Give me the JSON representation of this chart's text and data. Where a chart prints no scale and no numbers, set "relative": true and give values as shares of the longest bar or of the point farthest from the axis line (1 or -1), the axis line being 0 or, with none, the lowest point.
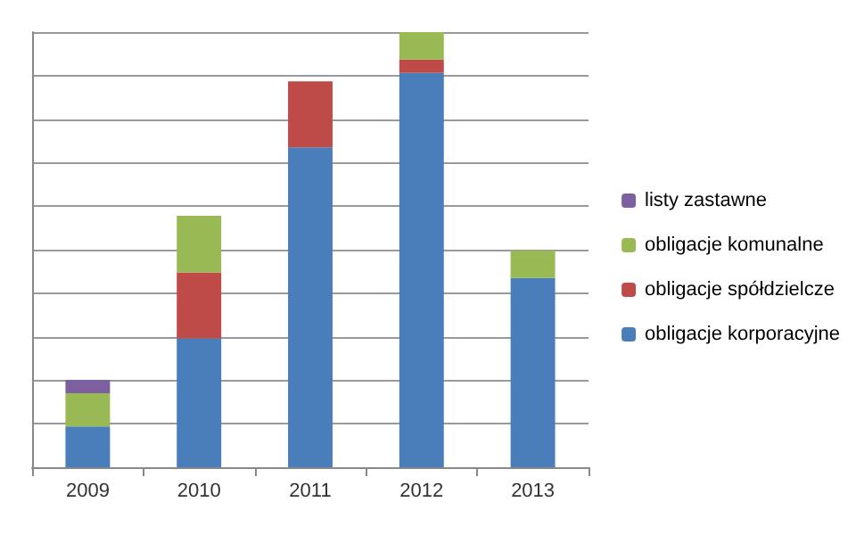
{
  "chart_data": {
    "type": "bar",
    "stacked": true,
    "relative": true,
    "grid": "y",
    "legend": "right",
    "categories": [
      "2009",
      "2010",
      "2011",
      "2012",
      "2013"
    ],
    "series": [
      {
        "name": "obligacje korporacyjne",
        "color": "#4a7ebb",
        "values": [
          0.094,
          0.296,
          0.735,
          0.906,
          0.435
        ]
      },
      {
        "name": "obligacje spółdzielcze",
        "color": "#be4b48",
        "values": [
          null,
          0.152,
          0.152,
          0.031,
          null
        ]
      },
      {
        "name": "obligacje komunalne",
        "color": "#98b954",
        "values": [
          0.076,
          0.13,
          null,
          0.063,
          0.063
        ]
      },
      {
        "name": "listy zastawne",
        "color": "#7d60a0",
        "values": [
          0.031,
          null,
          null,
          null,
          null
        ]
      }
    ]
  }
}
